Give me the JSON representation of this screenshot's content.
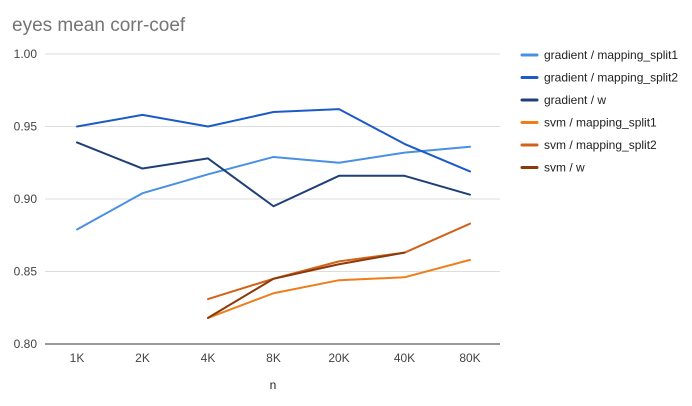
{
  "chart_data": {
    "type": "line",
    "title": "eyes mean corr-coef",
    "xlabel": "n",
    "ylabel": "",
    "categories": [
      "1K",
      "2K",
      "4K",
      "8K",
      "20K",
      "40K",
      "80K"
    ],
    "ylim": [
      0.8,
      1.0
    ],
    "yticks": [
      0.8,
      0.85,
      0.9,
      0.95,
      1.0
    ],
    "ytick_labels": [
      "0.80",
      "0.85",
      "0.90",
      "0.95",
      "1.00"
    ],
    "grid": true,
    "legend_position": "right",
    "series": [
      {
        "name": "gradient / mapping_split1",
        "color": "#4a90e2",
        "values": [
          0.879,
          0.904,
          0.917,
          0.929,
          0.925,
          0.932,
          0.936
        ]
      },
      {
        "name": "gradient / mapping_split2",
        "color": "#1c5ac8",
        "values": [
          0.95,
          0.958,
          0.95,
          0.96,
          0.962,
          0.938,
          0.919
        ]
      },
      {
        "name": "gradient / w",
        "color": "#1f3f78",
        "values": [
          0.939,
          0.921,
          0.928,
          0.895,
          0.916,
          0.916,
          0.903
        ]
      },
      {
        "name": "svm / mapping_split1",
        "color": "#ef7d1a",
        "values": [
          null,
          null,
          0.818,
          0.835,
          0.844,
          0.846,
          0.858
        ]
      },
      {
        "name": "svm / mapping_split2",
        "color": "#d1621a",
        "values": [
          null,
          null,
          0.831,
          0.845,
          0.857,
          0.863,
          0.883
        ]
      },
      {
        "name": "svm / w",
        "color": "#8c3a0c",
        "values": [
          null,
          null,
          0.818,
          0.845,
          0.855,
          0.863,
          null
        ]
      }
    ]
  }
}
